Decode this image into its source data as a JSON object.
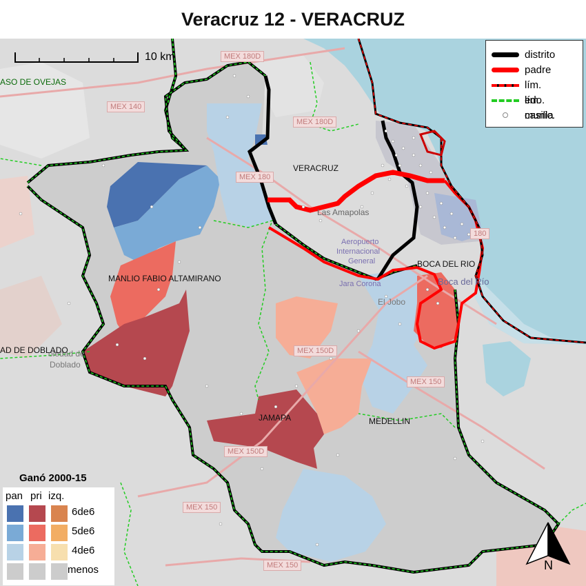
{
  "title": "Veracruz 12 - VERACRUZ",
  "scale_label": "10 km",
  "north_label": "N",
  "line_legend": [
    {
      "label": "distrito",
      "color": "#000000",
      "style": "thick"
    },
    {
      "label": "padre",
      "color": "#ff0000",
      "style": "thick"
    },
    {
      "label": "lím. edo.",
      "color": "#ff0000",
      "style": "dashed-black"
    },
    {
      "label": "lím. munic.",
      "color": "#22cc22",
      "style": "dashed-black"
    },
    {
      "label": "casilla",
      "color": "#ffffff",
      "style": "dot"
    }
  ],
  "color_legend": {
    "title": "Ganó 2000-15",
    "columns": [
      "pan",
      "pri",
      "izq."
    ],
    "rows": [
      {
        "label": "6de6",
        "colors": [
          "#4a72b0",
          "#b5484f",
          "#d9844f"
        ]
      },
      {
        "label": "5de6",
        "colors": [
          "#7aaad6",
          "#ec6b60",
          "#f2ad64"
        ]
      },
      {
        "label": "4de6",
        "colors": [
          "#b8d2e6",
          "#f6ad96",
          "#f7dfae"
        ]
      },
      {
        "label": "menos",
        "colors": [
          "#cccccc",
          "#cccccc",
          "#cccccc"
        ]
      }
    ]
  },
  "map_labels": {
    "veracruz": "VERACRUZ",
    "boca_del_rio": "BOCA DEL RIO",
    "manlio": "MANLIO FABIO ALTAMIRANO",
    "jamapa": "JAMAPA",
    "medellin": "MEDELLIN",
    "paso_de_ovejas": "ASO DE OVEJAS",
    "soledad": "AD DE DOBLADO"
  },
  "road_labels": {
    "r1": "MEX 180D",
    "r2": "MEX 140",
    "r3": "MEX 180D",
    "r4": "MEX 180",
    "r5": "MEX 150D",
    "r6": "MEX 150",
    "r7": "MEX 150D",
    "r8": "MEX 150",
    "r9": "MEX 150",
    "r10": "180"
  },
  "basemap_labels": {
    "amapolas": "Las Amapolas",
    "aeropuerto": "Aeropuerto",
    "internacional": "Internacional",
    "general": "General",
    "jara": "Jara Corona",
    "boca": "Boca del Río",
    "el_jobo": "El Jobo",
    "soledad_town": "oledad de",
    "doblado_town": "Doblado"
  },
  "colors": {
    "sea": "#aad3df",
    "land": "#dcdcdc",
    "district": "#000000",
    "parent": "#ff0000"
  }
}
